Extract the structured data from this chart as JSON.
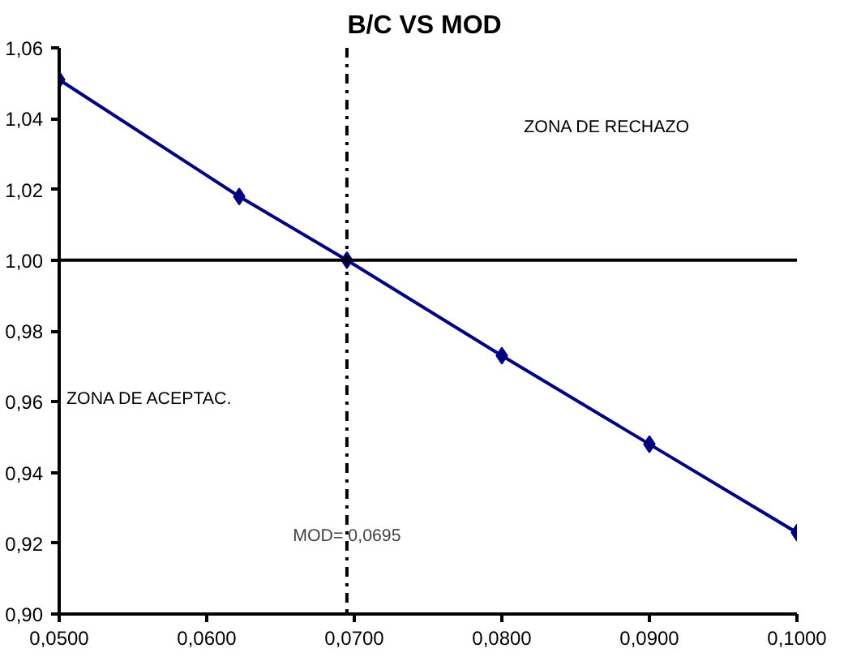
{
  "chart_data": {
    "type": "line",
    "title": "B/C  VS MOD",
    "x": [
      0.05,
      0.0622,
      0.0695,
      0.08,
      0.09,
      0.1
    ],
    "series": [
      {
        "color": "#000080",
        "values": [
          1.051,
          1.018,
          1.0,
          0.973,
          0.948,
          0.923
        ]
      }
    ],
    "marker": "diamond",
    "line_style": "solid",
    "grid": false,
    "xlim": [
      0.05,
      0.1
    ],
    "ylim": [
      0.9,
      1.06
    ],
    "xticks": [
      {
        "value": 0.05,
        "label": "0,0500"
      },
      {
        "value": 0.06,
        "label": "0,0600"
      },
      {
        "value": 0.07,
        "label": "0,0700"
      },
      {
        "value": 0.08,
        "label": "0,0800"
      },
      {
        "value": 0.09,
        "label": "0,0900"
      },
      {
        "value": 0.1,
        "label": "0,1000"
      }
    ],
    "yticks": [
      {
        "value": 0.9,
        "label": "0,90"
      },
      {
        "value": 0.92,
        "label": "0,92"
      },
      {
        "value": 0.94,
        "label": "0,94"
      },
      {
        "value": 0.96,
        "label": "0,96"
      },
      {
        "value": 0.98,
        "label": "0,98"
      },
      {
        "value": 1.0,
        "label": "1,00"
      },
      {
        "value": 1.02,
        "label": "1,02"
      },
      {
        "value": 1.04,
        "label": "1,04"
      },
      {
        "value": 1.06,
        "label": "1,06"
      }
    ],
    "ref_lines": [
      {
        "axis": "y",
        "value": 1.0,
        "color": "#000000",
        "line_style": "solid"
      },
      {
        "axis": "x",
        "value": 0.0695,
        "label": "MOD= 0,0695",
        "color": "#000000",
        "line_style": "dashdot"
      }
    ],
    "annotations": [
      "ZONA DE RECHAZO",
      "ZONA DE ACEPTAC."
    ]
  }
}
